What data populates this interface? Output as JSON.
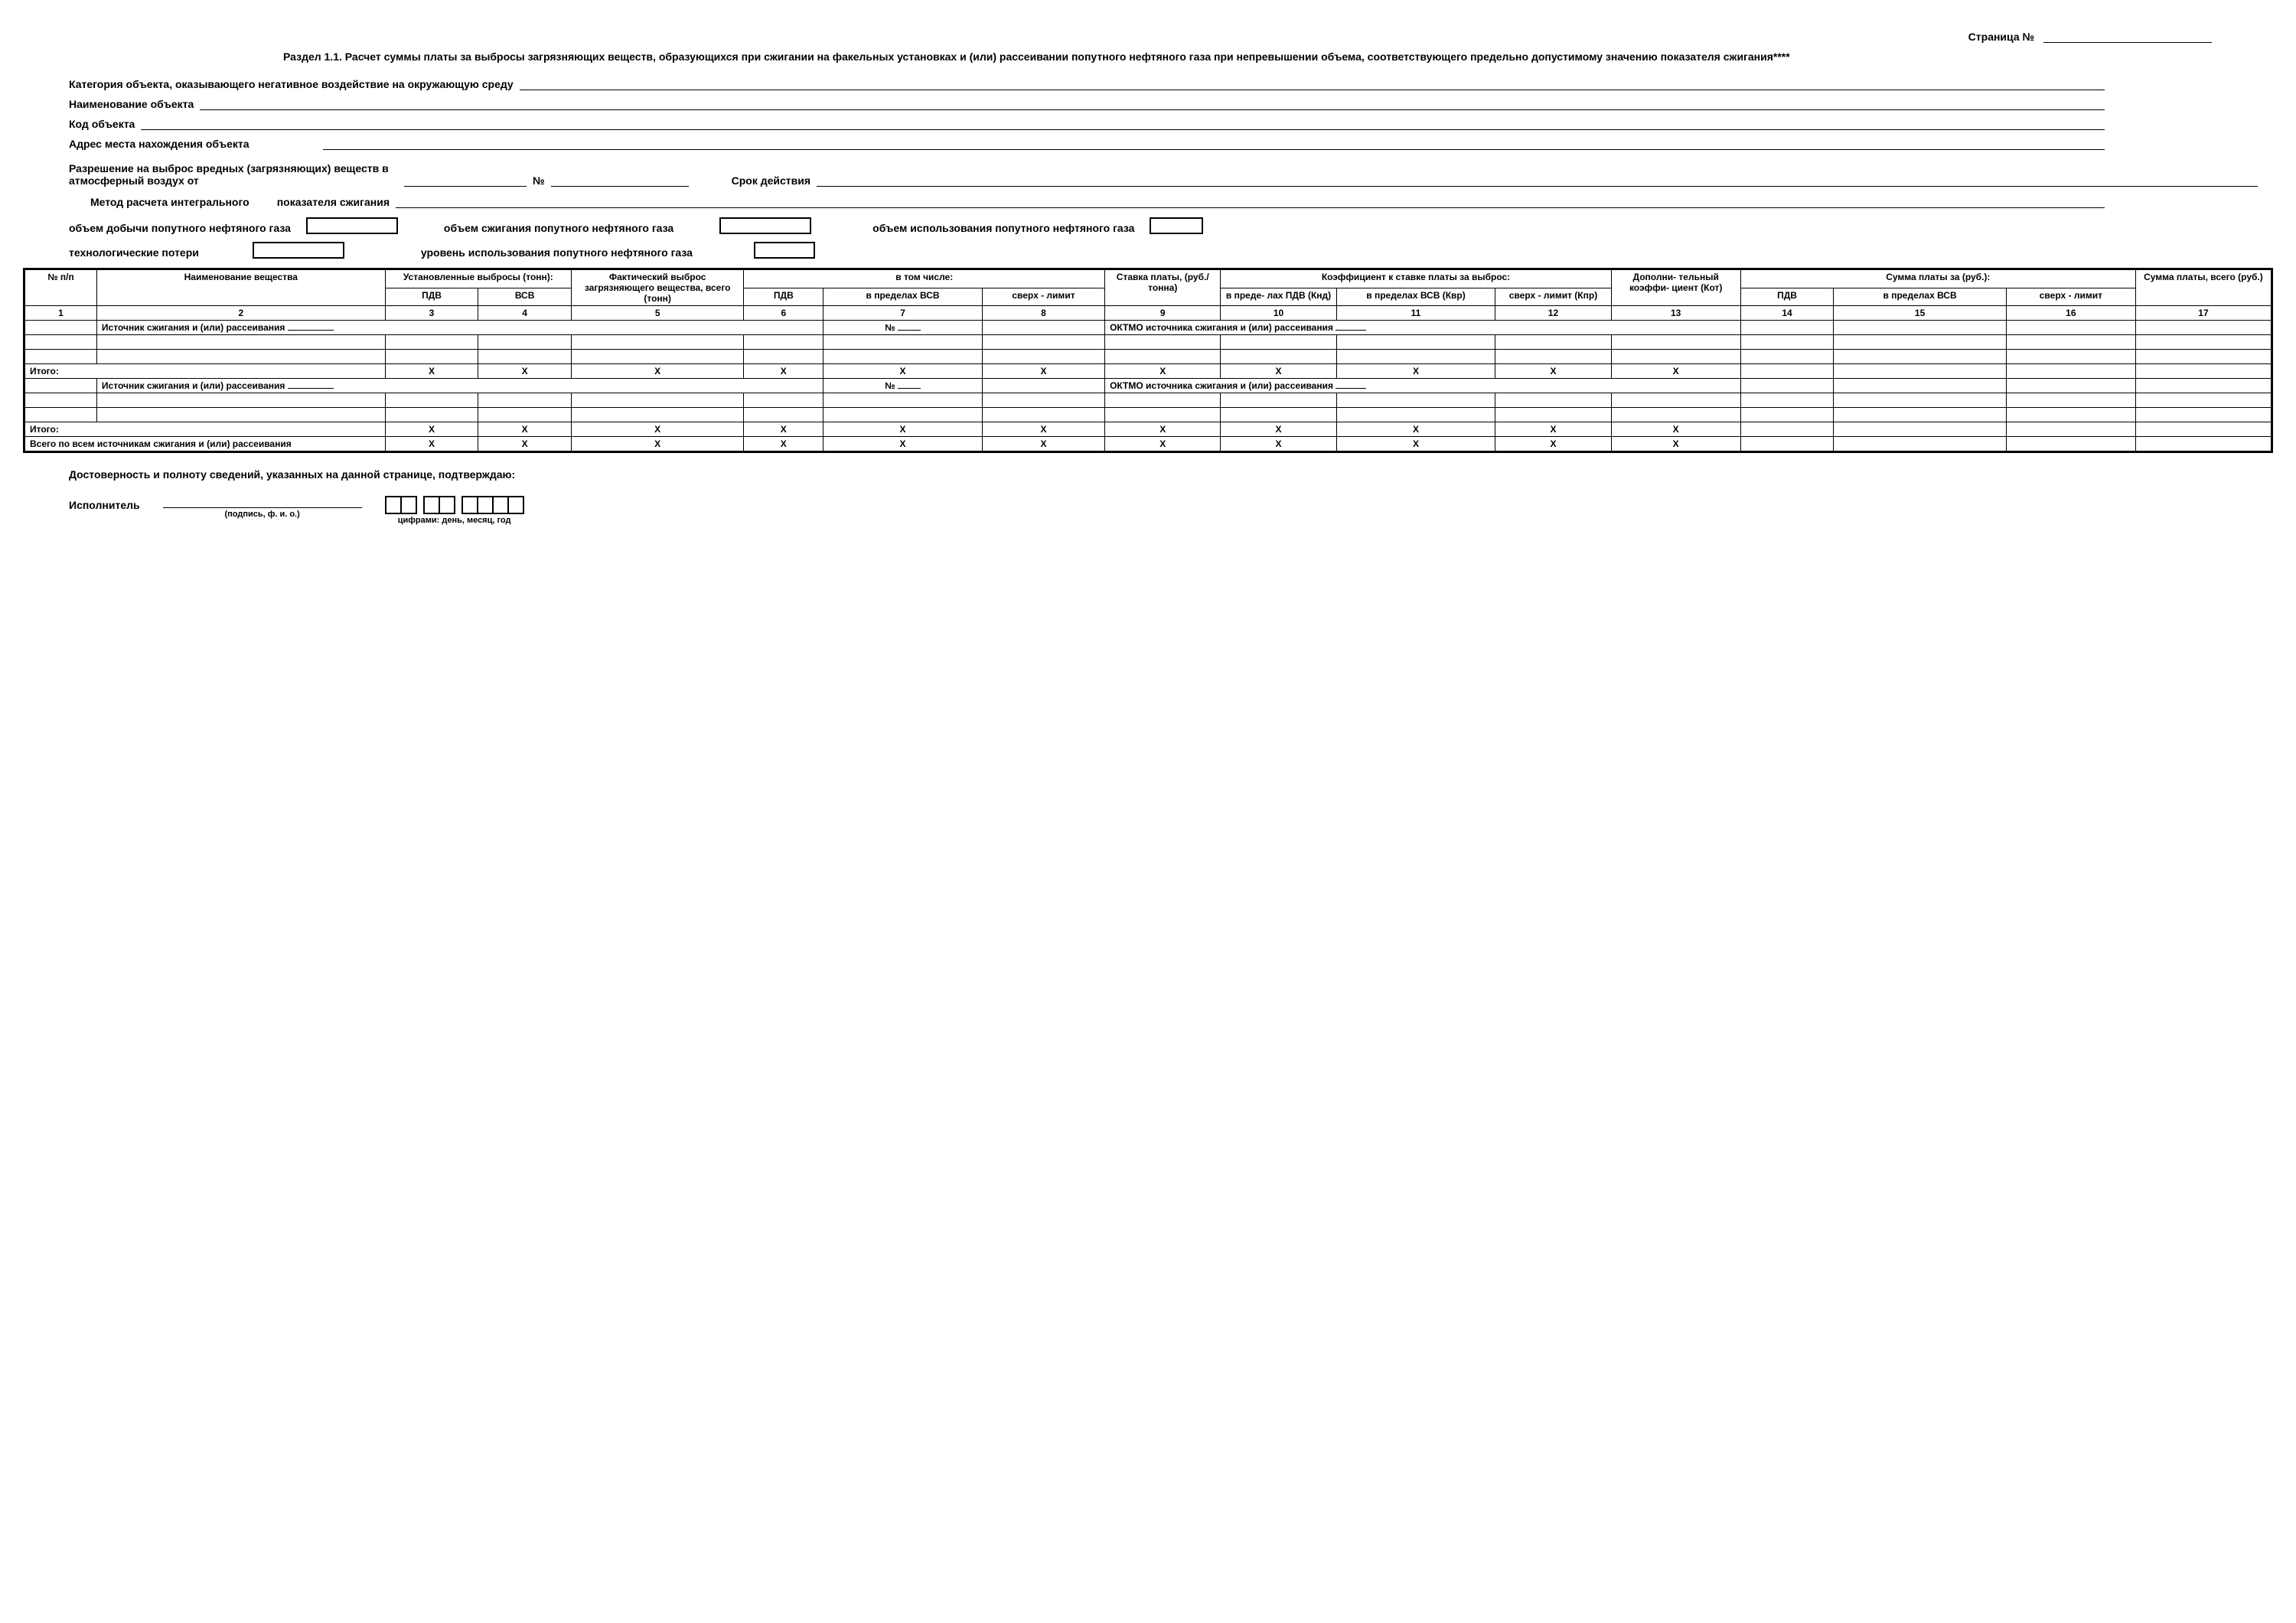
{
  "page_label": "Страница №",
  "title": "Раздел 1.1. Расчет суммы платы за выбросы загрязняющих веществ, образующихся при сжигании на факельных установках и (или) рассеивании попутного нефтяного газа при непревышении объема, соответствующего предельно допустимому значению показателя сжигания****",
  "labels": {
    "category": "Категория объекта, оказывающего негативное воздействие на окружающую среду",
    "obj_name": "Наименование объекта",
    "obj_code": "Код объекта",
    "obj_addr": "Адрес места нахождения объекта",
    "permit": "Разрешение на выброс вредных (загрязняющих) веществ в атмосферный воздух от",
    "no": "№",
    "validity": "Срок действия",
    "method": "Метод расчета интегрального",
    "method2": "показателя сжигания",
    "vol_extract": "объем добычи попутного нефтяного газа",
    "vol_burn": "объем сжигания попутного нефтяного газа",
    "vol_use": "объем использования попутного нефтяного газа",
    "tech_loss": "технологические потери",
    "use_level": "уровень использования попутного нефтяного газа"
  },
  "table": {
    "headers": {
      "c1": "№ п/п",
      "c2": "Наименование вещества",
      "g3": "Установленные выбросы (тонн):",
      "c3": "ПДВ",
      "c4": "ВСВ",
      "c5": "Фактический выброс загрязняющего вещества, всего (тонн)",
      "g6": "в том числе:",
      "c6": "ПДВ",
      "c7": "в пределах ВСВ",
      "c8": "сверх - лимит",
      "c9": "Ставка платы, (руб./ тонна)",
      "g10": "Коэффициент к ставке платы за выброс:",
      "c10": "в преде- лах ПДВ (Кнд)",
      "c11": "в пределах ВСВ (Квр)",
      "c12": "сверх - лимит (Кпр)",
      "c13": "Дополни- тельный коэффи- циент (Кот)",
      "g14": "Сумма платы за (руб.):",
      "c14": "ПДВ",
      "c15": "в пределах ВСВ",
      "c16": "сверх - лимит",
      "c17": "Сумма платы, всего (руб.)"
    },
    "colnums": [
      "1",
      "2",
      "3",
      "4",
      "5",
      "6",
      "7",
      "8",
      "9",
      "10",
      "11",
      "12",
      "13",
      "14",
      "15",
      "16",
      "17"
    ],
    "src_row": "Источник сжигания и (или) рассеивания",
    "oktmo": "ОКТМО источника сжигания и (или) рассеивания",
    "itogo": "Итого:",
    "total_all": "Всего по всем источникам сжигания и (или) рассеивания",
    "x": "X"
  },
  "footer": {
    "confirm": "Достоверность и полноту сведений, указанных на данной странице, подтверждаю:",
    "ispolnitel": "Исполнитель",
    "sig_caption": "(подпись, ф. и. о.)",
    "date_caption": "цифрами: день, месяц, год"
  },
  "colors": {
    "fg": "#000000",
    "bg": "#ffffff"
  },
  "col_widths_pct": [
    3.2,
    12.7,
    4.1,
    4.1,
    7.6,
    3.5,
    7.0,
    5.4,
    5.1,
    5.1,
    7.0,
    5.1,
    5.7,
    4.1,
    7.6,
    5.7,
    6.0
  ]
}
